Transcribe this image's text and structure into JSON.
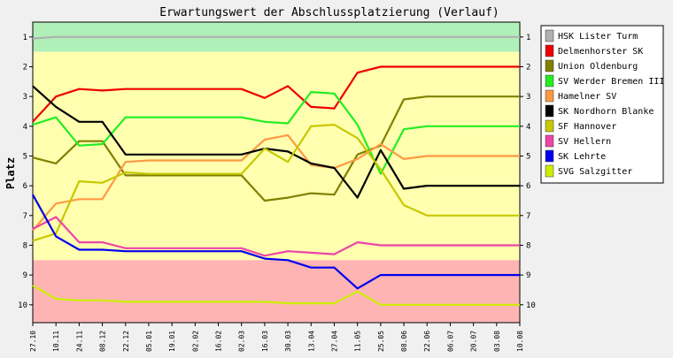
{
  "chart_data": {
    "type": "line",
    "title": "Erwartungswert der Abschlussplatzierung (Verlauf)",
    "ylabel": "Platz",
    "xlabel": "",
    "ylim": [
      0.5,
      10.6
    ],
    "y_inverted": true,
    "yticks": [
      1,
      2,
      3,
      4,
      5,
      6,
      7,
      8,
      9,
      10
    ],
    "grid": false,
    "legend_position": "right",
    "bands": [
      {
        "from": 0.5,
        "to": 1.5,
        "color": "#b0f0b8"
      },
      {
        "from": 1.5,
        "to": 8.5,
        "color": "#ffffaf"
      },
      {
        "from": 8.5,
        "to": 10.6,
        "color": "#ffb4b4"
      }
    ],
    "categories": [
      "27.10",
      "10.11",
      "24.11",
      "08.12",
      "22.12",
      "05.01",
      "19.01",
      "02.02",
      "16.02",
      "02.03",
      "16.03",
      "30.03",
      "13.04",
      "27.04",
      "11.05",
      "25.05",
      "08.06",
      "22.06",
      "06.07",
      "20.07",
      "03.08",
      "10.08"
    ],
    "series": [
      {
        "name": "HSK Lister Turm",
        "color": "#b0b0b0",
        "values": [
          1.05,
          1.0,
          1.0,
          1.0,
          1.0,
          1.0,
          1.0,
          1.0,
          1.0,
          1.0,
          1.0,
          1.0,
          1.0,
          1.0,
          1.0,
          1.0,
          1.0,
          1.0,
          1.0,
          1.0,
          1.0,
          1.0
        ]
      },
      {
        "name": "Delmenhorster SK",
        "color": "#ee0000",
        "values": [
          3.85,
          3.0,
          2.75,
          2.8,
          2.75,
          2.75,
          2.75,
          2.75,
          2.75,
          2.75,
          3.05,
          2.65,
          3.35,
          3.4,
          2.2,
          2.0,
          2.0,
          2.0,
          2.0,
          2.0,
          2.0,
          2.0
        ]
      },
      {
        "name": "Union Oldenburg",
        "color": "#808000",
        "values": [
          5.05,
          5.25,
          4.5,
          4.5,
          5.65,
          5.65,
          5.65,
          5.65,
          5.65,
          5.65,
          6.5,
          6.4,
          6.25,
          6.3,
          4.95,
          4.65,
          3.1,
          3.0,
          3.0,
          3.0,
          3.0,
          3.0
        ]
      },
      {
        "name": "SV Werder Bremen III",
        "color": "#22ee22",
        "values": [
          3.95,
          3.7,
          4.65,
          4.6,
          3.7,
          3.7,
          3.7,
          3.7,
          3.7,
          3.7,
          3.85,
          3.9,
          2.85,
          2.9,
          3.95,
          5.6,
          4.1,
          4.0,
          4.0,
          4.0,
          4.0,
          4.0
        ]
      },
      {
        "name": "Hamelner SV",
        "color": "#ff9944",
        "values": [
          7.5,
          6.6,
          6.45,
          6.45,
          5.2,
          5.15,
          5.15,
          5.15,
          5.15,
          5.15,
          4.45,
          4.3,
          5.3,
          5.4,
          5.1,
          4.6,
          5.1,
          5.0,
          5.0,
          5.0,
          5.0,
          5.0
        ]
      },
      {
        "name": "SK Nordhorn Blanke",
        "color": "#000000",
        "values": [
          2.65,
          3.35,
          3.85,
          3.85,
          4.95,
          4.95,
          4.95,
          4.95,
          4.95,
          4.95,
          4.75,
          4.85,
          5.25,
          5.4,
          6.4,
          4.8,
          6.1,
          6.0,
          6.0,
          6.0,
          6.0,
          6.0
        ]
      },
      {
        "name": "SF Hannover",
        "color": "#c8c800",
        "values": [
          7.85,
          7.6,
          5.85,
          5.9,
          5.55,
          5.6,
          5.6,
          5.6,
          5.6,
          5.6,
          4.75,
          5.2,
          4.0,
          3.95,
          4.4,
          5.45,
          6.65,
          7.0,
          7.0,
          7.0,
          7.0,
          7.0
        ]
      },
      {
        "name": "SV Hellern",
        "color": "#ee44aa",
        "values": [
          7.45,
          7.05,
          7.9,
          7.9,
          8.1,
          8.1,
          8.1,
          8.1,
          8.1,
          8.1,
          8.35,
          8.2,
          8.25,
          8.3,
          7.9,
          8.0,
          8.0,
          8.0,
          8.0,
          8.0,
          8.0,
          8.0
        ]
      },
      {
        "name": "SK Lehrte",
        "color": "#0000ee",
        "values": [
          6.3,
          7.7,
          8.15,
          8.15,
          8.2,
          8.2,
          8.2,
          8.2,
          8.2,
          8.2,
          8.45,
          8.5,
          8.75,
          8.75,
          9.45,
          9.0,
          9.0,
          9.0,
          9.0,
          9.0,
          9.0,
          9.0
        ]
      },
      {
        "name": "SVG Salzgitter",
        "color": "#ccee00",
        "values": [
          9.35,
          9.8,
          9.85,
          9.85,
          9.9,
          9.9,
          9.9,
          9.9,
          9.9,
          9.9,
          9.9,
          9.95,
          9.95,
          9.95,
          9.55,
          10.0,
          10.0,
          10.0,
          10.0,
          10.0,
          10.0,
          10.0
        ]
      }
    ]
  }
}
